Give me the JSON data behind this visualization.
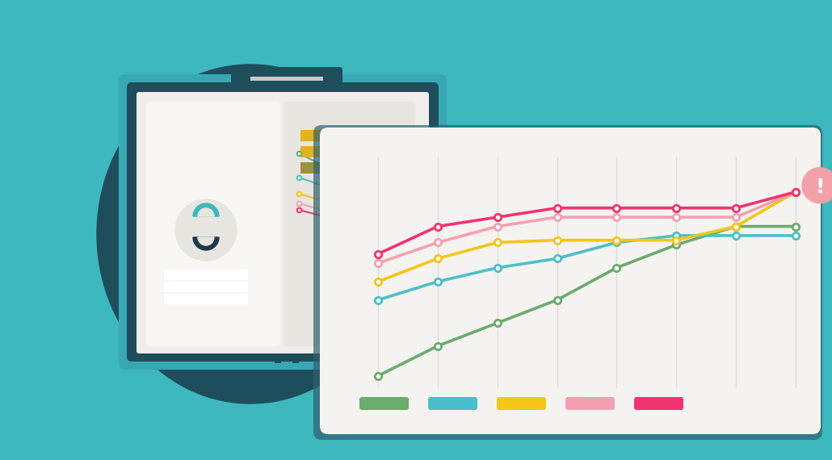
{
  "bg_color": "#3db8be",
  "monitor_dark": "#1e4d5c",
  "monitor_mid": "#2d7d8e",
  "monitor_teal": "#38a8b5",
  "monitor_screen_bg": "#f0eeeb",
  "monitor_screen_light": "#f8f6f3",
  "card_bg": "#f5f3f0",
  "card_white": "#fefefe",
  "stand_dark": "#1e4d5c",
  "stand_mid": "#2d7d8e",
  "stand_base": "#c8c8c8",
  "logo_teal": "#3db8be",
  "logo_dark": "#1e3a4a",
  "bar_gold": "#e8b020",
  "bar_khaki": "#9e9040",
  "person_color": "#d0ccc8",
  "grid_color": "#e0ddd8",
  "line1_color": "#6aab6e",
  "line2_color": "#4bbfc9",
  "line3_color": "#f5c518",
  "line4_color": "#f4a0b0",
  "line5_color": "#f0336e",
  "warning_color": "#f4a0a8",
  "n_points": 8,
  "line1_values": [
    95,
    82,
    72,
    62,
    48,
    38,
    30,
    30
  ],
  "line2_values": [
    62,
    54,
    48,
    44,
    37,
    34,
    34,
    34
  ],
  "line3_values": [
    54,
    44,
    37,
    36,
    36,
    36,
    30,
    15
  ],
  "line4_values": [
    46,
    37,
    30,
    26,
    26,
    26,
    26,
    15
  ],
  "line5_values": [
    42,
    30,
    26,
    22,
    22,
    22,
    22,
    15
  ],
  "ylim": [
    0,
    110
  ],
  "line_width": 2.0,
  "marker_size": 6
}
